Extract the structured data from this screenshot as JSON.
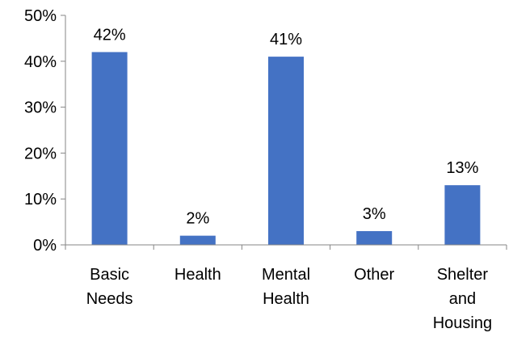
{
  "chart_data": {
    "type": "bar",
    "categories": [
      [
        "Basic",
        "Needs"
      ],
      [
        "Health"
      ],
      [
        "Mental",
        "Health"
      ],
      [
        "Other"
      ],
      [
        "Shelter",
        "and",
        "Housing"
      ]
    ],
    "values": [
      42,
      2,
      41,
      3,
      13
    ],
    "data_labels": [
      "42%",
      "2%",
      "41%",
      "3%",
      "13%"
    ],
    "y_ticks": [
      0,
      10,
      20,
      30,
      40,
      50
    ],
    "y_tick_labels": [
      "0%",
      "10%",
      "20%",
      "30%",
      "40%",
      "50%"
    ],
    "ylim": [
      0,
      50
    ],
    "grid": false,
    "legend": "none",
    "bar_color": "#4472C4",
    "axis_color": "#868686"
  }
}
